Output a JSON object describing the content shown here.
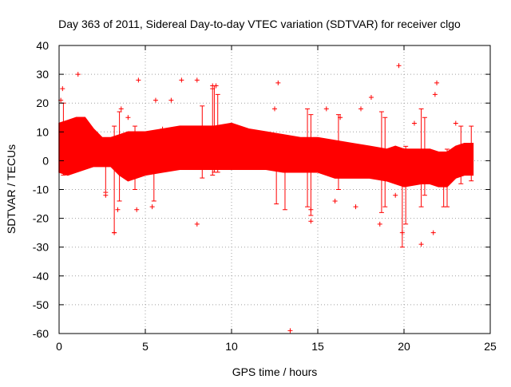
{
  "chart_data": {
    "type": "scatter",
    "title": "Day 363 of 2011, Sidereal Day-to-day VTEC variation (SDTVAR) for receiver clgo",
    "xlabel": "GPS time / hours",
    "ylabel": "SDTVAR / TECUs",
    "xlim": [
      0,
      25
    ],
    "ylim": [
      -60,
      40
    ],
    "xticks": [
      0,
      5,
      10,
      15,
      20,
      25
    ],
    "yticks": [
      -60,
      -50,
      -40,
      -30,
      -20,
      -10,
      0,
      10,
      20,
      30,
      40
    ],
    "grid": true,
    "legend": "none",
    "marker": "plus",
    "series": [
      {
        "name": "SDTVAR",
        "color": "#ff0000",
        "band": {
          "x": [
            0,
            0.5,
            1,
            1.5,
            2,
            2.5,
            3,
            3.5,
            4,
            5,
            6,
            7,
            8,
            9,
            10,
            11,
            12,
            13,
            14,
            15,
            16,
            17,
            18,
            19,
            19.5,
            20,
            21,
            21.5,
            22,
            22.5,
            23,
            23.5,
            24
          ],
          "upper": [
            13,
            14,
            15,
            15,
            11,
            8,
            8,
            9,
            10,
            10,
            11,
            12,
            12,
            12,
            13,
            11,
            10,
            9,
            8,
            8,
            7,
            6,
            5,
            4,
            5,
            4,
            4,
            4,
            3,
            3,
            5,
            6,
            6
          ],
          "lower": [
            -4,
            -5,
            -4,
            -3,
            -2,
            -2,
            -2,
            -5,
            -7,
            -5,
            -4,
            -3,
            -3,
            -3,
            -3,
            -3,
            -3,
            -4,
            -4,
            -4,
            -6,
            -6,
            -6,
            -7,
            -8,
            -9,
            -8,
            -8,
            -9,
            -9,
            -6,
            -5,
            -5
          ]
        },
        "points": [
          {
            "x": 0.1,
            "y": 21
          },
          {
            "x": 0.2,
            "y": 25
          },
          {
            "x": 1.1,
            "y": 30
          },
          {
            "x": 4.6,
            "y": 28
          },
          {
            "x": 5.6,
            "y": 21
          },
          {
            "x": 6.5,
            "y": 21
          },
          {
            "x": 7.1,
            "y": 28
          },
          {
            "x": 8.0,
            "y": 28
          },
          {
            "x": 8.9,
            "y": 26
          },
          {
            "x": 9.1,
            "y": 26
          },
          {
            "x": 8.0,
            "y": -22
          },
          {
            "x": 12.5,
            "y": 18
          },
          {
            "x": 12.7,
            "y": 27
          },
          {
            "x": 13.4,
            "y": -59
          },
          {
            "x": 17.5,
            "y": 18
          },
          {
            "x": 18.1,
            "y": 22
          },
          {
            "x": 18.6,
            "y": -22
          },
          {
            "x": 19.7,
            "y": 33
          },
          {
            "x": 19.9,
            "y": -25
          },
          {
            "x": 21.0,
            "y": -29
          },
          {
            "x": 21.7,
            "y": -25
          },
          {
            "x": 21.9,
            "y": 27
          },
          {
            "x": 21.8,
            "y": 23
          },
          {
            "x": 23.0,
            "y": 13
          },
          {
            "x": 3.2,
            "y": -25
          },
          {
            "x": 3.4,
            "y": -17
          },
          {
            "x": 2.7,
            "y": -12
          },
          {
            "x": 4.5,
            "y": -17
          },
          {
            "x": 5.4,
            "y": -16
          },
          {
            "x": 3.6,
            "y": 18
          },
          {
            "x": 4.0,
            "y": 15
          },
          {
            "x": 6.0,
            "y": 11
          },
          {
            "x": 14.6,
            "y": -17
          },
          {
            "x": 14.6,
            "y": -21
          },
          {
            "x": 16.3,
            "y": 15
          },
          {
            "x": 16.0,
            "y": -14
          },
          {
            "x": 17.2,
            "y": -16
          },
          {
            "x": 15.5,
            "y": 18
          },
          {
            "x": 20.6,
            "y": 13
          },
          {
            "x": 19.5,
            "y": -12
          }
        ],
        "spikes": [
          {
            "x": 0.25,
            "from": -5,
            "to": 20
          },
          {
            "x": 2.7,
            "from": -11,
            "to": 5
          },
          {
            "x": 3.2,
            "from": -25,
            "to": 12
          },
          {
            "x": 3.5,
            "from": -14,
            "to": 17
          },
          {
            "x": 4.4,
            "from": -10,
            "to": 12
          },
          {
            "x": 5.5,
            "from": -14,
            "to": 10
          },
          {
            "x": 8.3,
            "from": -6,
            "to": 19
          },
          {
            "x": 8.9,
            "from": -5,
            "to": 25
          },
          {
            "x": 9.0,
            "from": -4,
            "to": 26
          },
          {
            "x": 9.2,
            "from": -4,
            "to": 23
          },
          {
            "x": 12.6,
            "from": -15,
            "to": 8
          },
          {
            "x": 13.1,
            "from": -17,
            "to": 5
          },
          {
            "x": 14.4,
            "from": -16,
            "to": 18
          },
          {
            "x": 14.6,
            "from": -19,
            "to": 16
          },
          {
            "x": 16.2,
            "from": -10,
            "to": 16
          },
          {
            "x": 18.7,
            "from": -18,
            "to": 17
          },
          {
            "x": 18.9,
            "from": -16,
            "to": 15
          },
          {
            "x": 19.9,
            "from": -30,
            "to": 2
          },
          {
            "x": 20.1,
            "from": -22,
            "to": 5
          },
          {
            "x": 21.0,
            "from": -16,
            "to": 18
          },
          {
            "x": 21.2,
            "from": -12,
            "to": 15
          },
          {
            "x": 22.3,
            "from": -16,
            "to": 3
          },
          {
            "x": 22.5,
            "from": -16,
            "to": 4
          },
          {
            "x": 23.3,
            "from": -8,
            "to": 12
          },
          {
            "x": 23.9,
            "from": -7,
            "to": 12
          }
        ]
      }
    ]
  }
}
